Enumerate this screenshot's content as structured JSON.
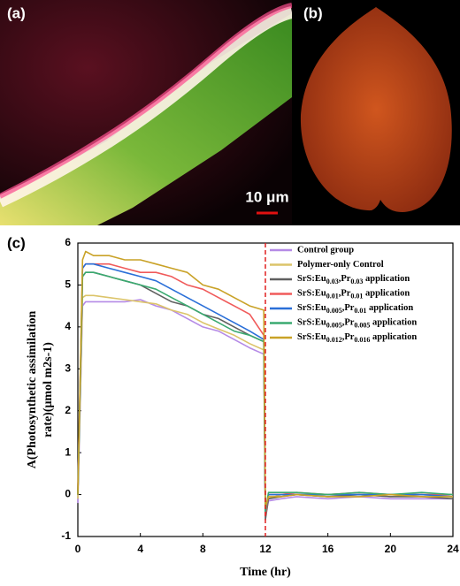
{
  "panels": {
    "a": "(a)",
    "b": "(b)",
    "c": "(c)",
    "scale_bar": "10 μm"
  },
  "chart_data": {
    "type": "line",
    "xlabel": "Time (hr)",
    "ylabel": [
      "A(Photosynthetic assimilation",
      "rate)(μmol m2s-1)"
    ],
    "x": [
      0,
      0.3,
      0.5,
      1,
      2,
      3,
      4,
      5,
      6,
      7,
      8,
      9,
      10,
      11,
      11.9,
      12,
      12.2,
      13,
      14,
      16,
      18,
      20,
      22,
      24
    ],
    "xlim": [
      0,
      24
    ],
    "xticks": [
      0,
      4,
      8,
      12,
      16,
      20,
      24
    ],
    "ylim": [
      -1,
      6
    ],
    "yticks": [
      -1,
      0,
      1,
      2,
      3,
      4,
      5,
      6
    ],
    "vline": {
      "x": 12,
      "color": "#e02020"
    },
    "series": [
      {
        "name": "Control group",
        "color": "#b58ae6",
        "values": [
          -0.2,
          4.5,
          4.6,
          4.6,
          4.6,
          4.6,
          4.65,
          4.5,
          4.4,
          4.2,
          4.0,
          3.9,
          3.7,
          3.5,
          3.35,
          -0.5,
          -0.15,
          -0.1,
          -0.05,
          -0.1,
          -0.05,
          -0.1,
          -0.1,
          -0.1
        ]
      },
      {
        "name": "Polymer-only Control",
        "color": "#dcc46a",
        "values": [
          -0.1,
          4.7,
          4.75,
          4.75,
          4.7,
          4.65,
          4.6,
          4.55,
          4.4,
          4.3,
          4.1,
          3.95,
          3.8,
          3.6,
          3.45,
          -0.4,
          -0.1,
          0.0,
          0.0,
          -0.05,
          0.0,
          -0.05,
          0.0,
          -0.05
        ]
      },
      {
        "name": "SrS:Eu0.03,Pr0.03 application",
        "color": "#606060",
        "values": [
          0.0,
          5.2,
          5.3,
          5.3,
          5.2,
          5.1,
          5.0,
          4.8,
          4.6,
          4.5,
          4.3,
          4.2,
          4.0,
          3.8,
          3.65,
          -0.6,
          -0.1,
          -0.05,
          0.0,
          -0.05,
          0.0,
          -0.05,
          -0.05,
          -0.1
        ]
      },
      {
        "name": "SrS:Eu0.01,Pr0.01 application",
        "color": "#f05a5a",
        "values": [
          0.1,
          5.4,
          5.5,
          5.5,
          5.5,
          5.4,
          5.3,
          5.3,
          5.2,
          5.0,
          4.9,
          4.7,
          4.5,
          4.3,
          3.8,
          -0.5,
          0.0,
          0.0,
          0.05,
          0.0,
          0.05,
          0.0,
          0.0,
          0.0
        ]
      },
      {
        "name": "SrS:Eu0.005,Pr0.01 application",
        "color": "#2a6fd8",
        "values": [
          0.0,
          5.4,
          5.5,
          5.5,
          5.4,
          5.3,
          5.2,
          5.1,
          4.9,
          4.7,
          4.5,
          4.3,
          4.1,
          3.9,
          3.7,
          -0.4,
          0.0,
          0.0,
          0.0,
          0.0,
          0.0,
          0.0,
          0.0,
          -0.05
        ]
      },
      {
        "name": "SrS:Eu0.005,Pr0.005 application",
        "color": "#3aaa70",
        "values": [
          0.0,
          5.2,
          5.3,
          5.3,
          5.2,
          5.1,
          5.0,
          4.9,
          4.7,
          4.5,
          4.3,
          4.1,
          3.9,
          3.8,
          3.65,
          -0.4,
          0.05,
          0.05,
          0.05,
          0.0,
          0.05,
          0.0,
          0.05,
          0.0
        ]
      },
      {
        "name": "SrS:Eu0.012,Pr0.016 application",
        "color": "#c9a227",
        "values": [
          0.0,
          5.6,
          5.8,
          5.7,
          5.7,
          5.6,
          5.6,
          5.5,
          5.4,
          5.3,
          5.0,
          4.9,
          4.7,
          4.5,
          4.4,
          -0.3,
          -0.05,
          -0.05,
          0.0,
          -0.05,
          -0.05,
          0.0,
          -0.05,
          -0.05
        ]
      }
    ]
  }
}
